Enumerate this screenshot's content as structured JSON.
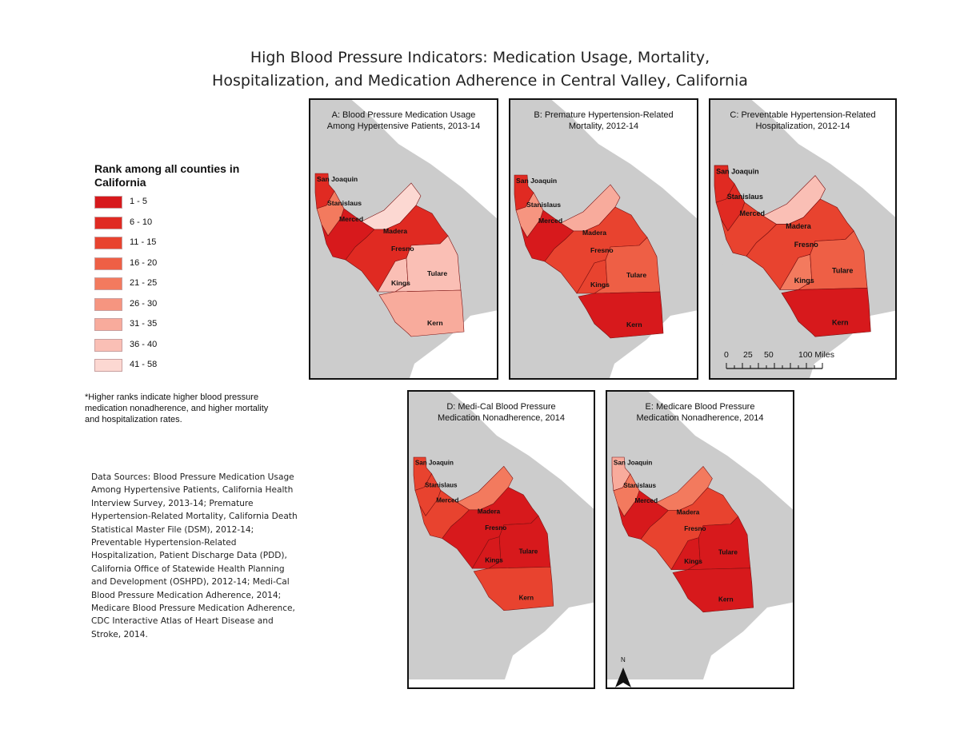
{
  "title": {
    "line1": "High Blood Pressure Indicators: Medication Usage, Mortality,",
    "line2": "Hospitalization, and Medication Adherence in Central Valley, California"
  },
  "legend": {
    "title": "Rank among all counties in California",
    "items": [
      {
        "label": "1 - 5",
        "color": "#d7191c"
      },
      {
        "label": "6 - 10",
        "color": "#e02a22"
      },
      {
        "label": "11 - 15",
        "color": "#e8432f"
      },
      {
        "label": "16 - 20",
        "color": "#ee5f45"
      },
      {
        "label": "21 - 25",
        "color": "#f37a5e"
      },
      {
        "label": "26 - 30",
        "color": "#f69580"
      },
      {
        "label": "31 - 35",
        "color": "#f8ab9c"
      },
      {
        "label": "36 - 40",
        "color": "#fabfb5"
      },
      {
        "label": "41 - 58",
        "color": "#fcd8d2"
      }
    ]
  },
  "note": "*Higher ranks indicate higher blood pressure medication nonadherence, and higher mortality and hospitalization rates.",
  "sources": "Data Sources: Blood Pressure Medication Usage Among Hypertensive Patients, California Health Interview Survey, 2013-14; Premature Hypertension-Related Mortality, California Death Statistical Master File (DSM), 2012-14; Preventable Hypertension-Related Hospitalization, Patient Discharge Data (PDD), California Office of Statewide Health Planning and Development (OSHPD), 2012-14; Medi-Cal Blood Pressure Medication Adherence, 2014; Medicare Blood Pressure Medication Adherence, CDC Interactive Atlas of Heart Disease and Stroke, 2014.",
  "background_colors": {
    "land": "#cccccc",
    "ocean": "#ffffff",
    "county_border": "#7a1010"
  },
  "counties": [
    "San Joaquin",
    "Stanislaus",
    "Merced",
    "Madera",
    "Fresno",
    "Kings",
    "Tulare",
    "Kern"
  ],
  "panels": [
    {
      "id": "A",
      "title_line1": "A: Blood Pressure Medication Usage",
      "title_line2": "Among Hypertensive Patients, 2013-14",
      "fills": {
        "San Joaquin": "#e02a22",
        "Stanislaus": "#f37a5e",
        "Merced": "#d7191c",
        "Madera": "#fcd8d2",
        "Fresno": "#e02a22",
        "Kings": "#fabfb5",
        "Tulare": "#fabfb5",
        "Kern": "#f8ab9c"
      }
    },
    {
      "id": "B",
      "title_line1": "B: Premature Hypertension-Related",
      "title_line2": "Mortality, 2012-14",
      "fills": {
        "San Joaquin": "#e02a22",
        "Stanislaus": "#f69580",
        "Merced": "#d7191c",
        "Madera": "#f8ab9c",
        "Fresno": "#e8432f",
        "Kings": "#e8432f",
        "Tulare": "#ee5f45",
        "Kern": "#d7191c"
      }
    },
    {
      "id": "C",
      "title_line1": "C: Preventable Hypertension-Related",
      "title_line2": "Hospitalization, 2012-14",
      "fills": {
        "San Joaquin": "#e02a22",
        "Stanislaus": "#e02a22",
        "Merced": "#e8432f",
        "Madera": "#fabfb5",
        "Fresno": "#e8432f",
        "Kings": "#f37a5e",
        "Tulare": "#ee5f45",
        "Kern": "#d7191c"
      }
    },
    {
      "id": "D",
      "title_line1": "D: Medi-Cal Blood Pressure",
      "title_line2": "Medication Nonadherence, 2014",
      "fills": {
        "San Joaquin": "#e8432f",
        "Stanislaus": "#e8432f",
        "Merced": "#e8432f",
        "Madera": "#f37a5e",
        "Fresno": "#d7191c",
        "Kings": "#d7191c",
        "Tulare": "#d7191c",
        "Kern": "#e8432f"
      }
    },
    {
      "id": "E",
      "title_line1": "E: Medicare Blood Pressure",
      "title_line2": "Medication Nonadherence, 2014",
      "fills": {
        "San Joaquin": "#f8ab9c",
        "Stanislaus": "#f37a5e",
        "Merced": "#d7191c",
        "Madera": "#f37a5e",
        "Fresno": "#e8432f",
        "Kings": "#d7191c",
        "Tulare": "#d7191c",
        "Kern": "#d7191c"
      }
    }
  ],
  "scale_bar": {
    "ticks": [
      "0",
      "25",
      "50",
      "100 Miles"
    ]
  },
  "north_arrow": {
    "label": "N"
  }
}
